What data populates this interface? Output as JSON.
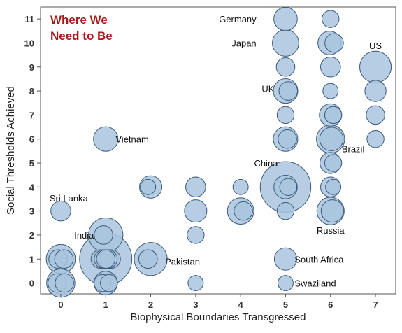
{
  "chart_data": {
    "type": "scatter",
    "title_lines": [
      "Where We",
      "Need to Be"
    ],
    "title_color": "#a51c1c",
    "xlabel": "Biophysical Boundaries Transgressed",
    "ylabel": "Social Thresholds Achieved",
    "xlim": [
      -0.45,
      7.45
    ],
    "ylim": [
      -0.45,
      11.5
    ],
    "xticks": [
      "0",
      "1",
      "2",
      "3",
      "4",
      "5",
      "6",
      "7"
    ],
    "yticks": [
      "0",
      "1",
      "2",
      "3",
      "4",
      "5",
      "6",
      "7",
      "8",
      "9",
      "10",
      "11"
    ],
    "grid": false,
    "bubble_fill": "#a9c4de",
    "bubble_stroke": "#3d5a78",
    "points": [
      {
        "x": 0,
        "y": 0,
        "size": 14,
        "dx": 0
      },
      {
        "x": 0,
        "y": 0,
        "size": 5,
        "dx": -0.08
      },
      {
        "x": 0,
        "y": 0,
        "size": 5,
        "dx": 0.08
      },
      {
        "x": 0,
        "y": 1,
        "size": 15,
        "dx": 0
      },
      {
        "x": 0,
        "y": 1,
        "size": 5,
        "dx": -0.06
      },
      {
        "x": 0,
        "y": 1,
        "size": 5,
        "dx": 0.07
      },
      {
        "x": 0,
        "y": 3,
        "size": 6,
        "dx": 0
      },
      {
        "x": 1,
        "y": 0,
        "size": 9,
        "dx": 0
      },
      {
        "x": 1,
        "y": 0,
        "size": 4,
        "dx": -0.07
      },
      {
        "x": 1,
        "y": 0,
        "size": 4,
        "dx": 0.07
      },
      {
        "x": 1,
        "y": 1,
        "size": 56,
        "dx": 0
      },
      {
        "x": 1,
        "y": 1,
        "size": 5,
        "dx": -0.12
      },
      {
        "x": 1,
        "y": 1,
        "size": 5,
        "dx": 0.12
      },
      {
        "x": 1,
        "y": 1,
        "size": 5,
        "dx": -0.05
      },
      {
        "x": 1,
        "y": 1,
        "size": 5,
        "dx": 0.05
      },
      {
        "x": 1,
        "y": 1,
        "size": 5,
        "dx": 0
      },
      {
        "x": 1,
        "y": 2,
        "size": 22,
        "dx": 0
      },
      {
        "x": 1,
        "y": 2,
        "size": 5,
        "dx": -0.05
      },
      {
        "x": 1,
        "y": 6,
        "size": 10,
        "dx": 0
      },
      {
        "x": 2,
        "y": 1,
        "size": 20,
        "dx": 0
      },
      {
        "x": 2,
        "y": 1,
        "size": 5,
        "dx": -0.06
      },
      {
        "x": 2,
        "y": 4,
        "size": 8,
        "dx": 0
      },
      {
        "x": 2,
        "y": 4,
        "size": 3,
        "dx": -0.06
      },
      {
        "x": 3,
        "y": 0,
        "size": 3,
        "dx": 0
      },
      {
        "x": 3,
        "y": 2,
        "size": 4,
        "dx": 0
      },
      {
        "x": 3,
        "y": 3,
        "size": 8,
        "dx": 0
      },
      {
        "x": 3,
        "y": 4,
        "size": 6,
        "dx": 0
      },
      {
        "x": 4,
        "y": 3,
        "size": 12,
        "dx": 0
      },
      {
        "x": 4,
        "y": 3,
        "size": 5,
        "dx": 0.06
      },
      {
        "x": 4,
        "y": 4,
        "size": 3,
        "dx": 0
      },
      {
        "x": 5,
        "y": 1,
        "size": 8,
        "dx": 0
      },
      {
        "x": 5,
        "y": 0,
        "size": 3,
        "dx": 0
      },
      {
        "x": 5,
        "y": 3,
        "size": 4,
        "dx": 0
      },
      {
        "x": 5,
        "y": 4,
        "size": 52,
        "dx": 0
      },
      {
        "x": 5,
        "y": 4,
        "size": 9,
        "dx": 0
      },
      {
        "x": 5,
        "y": 4,
        "size": 4,
        "dx": 0.06
      },
      {
        "x": 5,
        "y": 6,
        "size": 10,
        "dx": 0
      },
      {
        "x": 5,
        "y": 6,
        "size": 5,
        "dx": 0.04
      },
      {
        "x": 5,
        "y": 7,
        "size": 4,
        "dx": 0
      },
      {
        "x": 5,
        "y": 8,
        "size": 10,
        "dx": 0
      },
      {
        "x": 5,
        "y": 8,
        "size": 5,
        "dx": 0.06
      },
      {
        "x": 5,
        "y": 9,
        "size": 5,
        "dx": 0
      },
      {
        "x": 5,
        "y": 10,
        "size": 12,
        "dx": 0
      },
      {
        "x": 5,
        "y": 11,
        "size": 9,
        "dx": 0
      },
      {
        "x": 6,
        "y": 3,
        "size": 13,
        "dx": 0
      },
      {
        "x": 6,
        "y": 3,
        "size": 8,
        "dx": 0.04
      },
      {
        "x": 6,
        "y": 4,
        "size": 6,
        "dx": 0
      },
      {
        "x": 6,
        "y": 4,
        "size": 3,
        "dx": 0.06
      },
      {
        "x": 6,
        "y": 5,
        "size": 7,
        "dx": 0
      },
      {
        "x": 6,
        "y": 5,
        "size": 4,
        "dx": 0.06
      },
      {
        "x": 6,
        "y": 6,
        "size": 14,
        "dx": 0
      },
      {
        "x": 6,
        "y": 6,
        "size": 9,
        "dx": 0.02
      },
      {
        "x": 6,
        "y": 7,
        "size": 8,
        "dx": 0
      },
      {
        "x": 6,
        "y": 7,
        "size": 4,
        "dx": 0.06
      },
      {
        "x": 6,
        "y": 8,
        "size": 3,
        "dx": 0
      },
      {
        "x": 6,
        "y": 9,
        "size": 6,
        "dx": 0
      },
      {
        "x": 6,
        "y": 10,
        "size": 9,
        "dx": -0.02
      },
      {
        "x": 6,
        "y": 10,
        "size": 5,
        "dx": 0.08
      },
      {
        "x": 6,
        "y": 11,
        "size": 4,
        "dx": 0
      },
      {
        "x": 7,
        "y": 9,
        "size": 18,
        "dx": 0
      },
      {
        "x": 7,
        "y": 8,
        "size": 7,
        "dx": 0
      },
      {
        "x": 7,
        "y": 7,
        "size": 5,
        "dx": 0
      },
      {
        "x": 7,
        "y": 6,
        "size": 4,
        "dx": 0
      }
    ],
    "labels": [
      {
        "text": "Germany",
        "x": 4.35,
        "y": 11,
        "anchor": "end"
      },
      {
        "text": "Japan",
        "x": 4.35,
        "y": 10,
        "anchor": "end"
      },
      {
        "text": "US",
        "x": 7,
        "y": 9.9,
        "anchor": "middle"
      },
      {
        "text": "UK",
        "x": 4.75,
        "y": 8.1,
        "anchor": "end"
      },
      {
        "text": "Vietnam",
        "x": 1.22,
        "y": 6,
        "anchor": "start"
      },
      {
        "text": "Brazil",
        "x": 6.25,
        "y": 5.6,
        "anchor": "start"
      },
      {
        "text": "China",
        "x": 4.3,
        "y": 5,
        "anchor": "start"
      },
      {
        "text": "Sri Lanka",
        "x": -0.25,
        "y": 3.55,
        "anchor": "start"
      },
      {
        "text": "Russia",
        "x": 6,
        "y": 2.2,
        "anchor": "middle"
      },
      {
        "text": "India",
        "x": 0.3,
        "y": 2,
        "anchor": "start"
      },
      {
        "text": "Pakistan",
        "x": 2.32,
        "y": 0.9,
        "anchor": "start"
      },
      {
        "text": "South Africa",
        "x": 5.2,
        "y": 1,
        "anchor": "start"
      },
      {
        "text": "Swaziland",
        "x": 5.2,
        "y": 0,
        "anchor": "start"
      }
    ]
  }
}
